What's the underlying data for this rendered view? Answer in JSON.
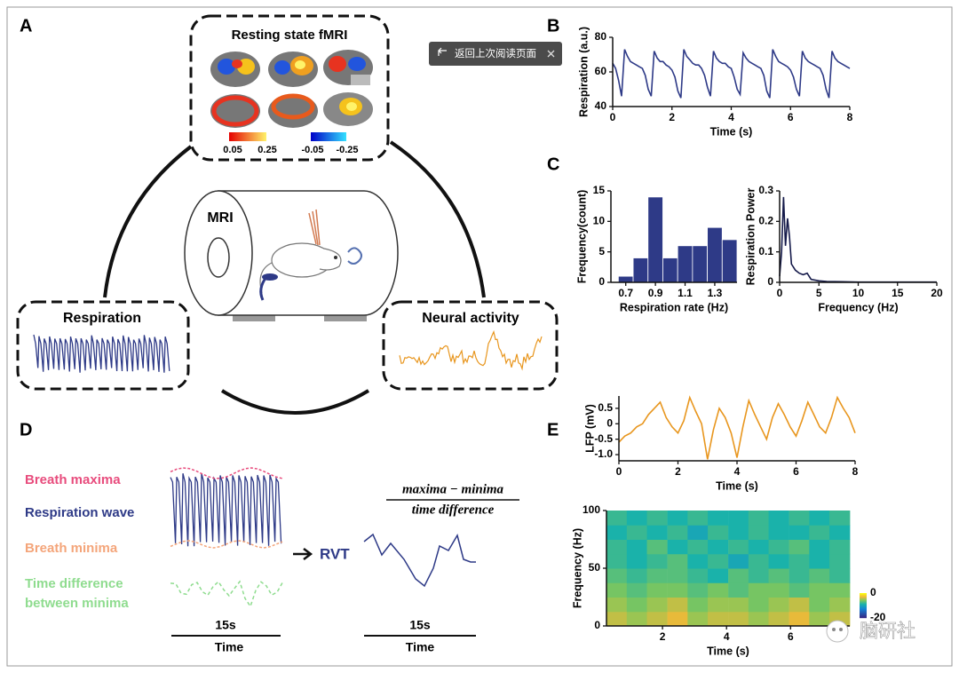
{
  "figure": {
    "panel_labels": [
      "A",
      "B",
      "C",
      "D",
      "E"
    ],
    "panel_a": {
      "fmri_title": "Resting state fMRI",
      "colorbar_labels": [
        "0.05",
        "0.25",
        "-0.05",
        "-0.25"
      ],
      "scanner": "MRI",
      "respiration": "Respiration",
      "neural": "Neural activity"
    },
    "panel_d": {
      "breath_maxima": "Breath maxima",
      "respiration_wave": "Respiration wave",
      "breath_minima": "Breath minima",
      "time_difference": [
        "Time difference",
        "between minima"
      ],
      "duration_left": "15s",
      "time_left": "Time",
      "rvt": "RVT",
      "formula_numerator": "maxima − minima",
      "formula_denominator": "time difference",
      "duration_right": "15s",
      "time_right": "Time"
    }
  },
  "overlay": {
    "back_button": "返回上次阅读页面",
    "watermark": "脑研社"
  },
  "chart_data": [
    {
      "type": "line",
      "xlabel": "Time (s)",
      "ylabel": "Respiration (a.u.)",
      "color": "#2e3a87",
      "x": [
        0,
        0.1,
        0.2,
        0.3,
        0.4,
        0.5,
        0.6,
        0.7,
        0.8,
        0.9,
        1,
        1.1,
        1.2,
        1.3,
        1.4,
        1.5,
        1.6,
        1.7,
        1.8,
        1.9,
        2,
        2.1,
        2.2,
        2.3,
        2.4,
        2.5,
        2.6,
        2.7,
        2.8,
        2.9,
        3,
        3.1,
        3.2,
        3.3,
        3.4,
        3.5,
        3.6,
        3.7,
        3.8,
        3.9,
        4,
        4.1,
        4.2,
        4.3,
        4.4,
        4.5,
        4.6,
        4.7,
        4.8,
        4.9,
        5,
        5.1,
        5.2,
        5.3,
        5.4,
        5.5,
        5.6,
        5.7,
        5.8,
        5.9,
        6,
        6.1,
        6.2,
        6.3,
        6.4,
        6.5,
        6.6,
        6.7,
        6.8,
        6.9,
        7,
        7.1,
        7.2,
        7.3,
        7.4,
        7.5,
        7.6,
        7.7,
        7.8,
        7.9,
        8
      ],
      "values": [
        65,
        62,
        55,
        46,
        73,
        69,
        66,
        65,
        64,
        63,
        62,
        58,
        50,
        46,
        72,
        68,
        66,
        66,
        64,
        63,
        61,
        57,
        49,
        45,
        73,
        69,
        67,
        65,
        64,
        64,
        62,
        58,
        51,
        46,
        72,
        68,
        66,
        65,
        65,
        63,
        62,
        57,
        50,
        47,
        71,
        68,
        66,
        65,
        64,
        63,
        62,
        58,
        49,
        45,
        73,
        69,
        66,
        65,
        64,
        63,
        61,
        57,
        50,
        46,
        72,
        68,
        66,
        65,
        64,
        63,
        62,
        58,
        50,
        45,
        72,
        68,
        66,
        65,
        64,
        63,
        62
      ],
      "xlim": [
        0,
        8
      ],
      "ylim": [
        40,
        80
      ],
      "xticks": [
        0,
        2,
        4,
        6,
        8
      ],
      "yticks": [
        40,
        60,
        80
      ]
    },
    {
      "type": "histogram",
      "xlabel": "Respiration rate (Hz)",
      "ylabel": "Frequency(count)",
      "color": "#2e3a87",
      "bins": [
        0.65,
        0.75,
        0.85,
        0.95,
        1.05,
        1.15,
        1.25,
        1.35,
        1.45
      ],
      "values": [
        1,
        4,
        14,
        4,
        6,
        6,
        9,
        7
      ],
      "xlim": [
        0.6,
        1.45
      ],
      "ylim": [
        0,
        15
      ],
      "xticks": [
        0.7,
        0.9,
        1.1,
        1.3
      ],
      "yticks": [
        0,
        5,
        10,
        15
      ]
    },
    {
      "type": "line",
      "xlabel": "Frequency (Hz)",
      "ylabel": "Respiration Power",
      "color": "#151a4a",
      "x": [
        0,
        0.25,
        0.5,
        0.75,
        1,
        1.25,
        1.5,
        1.75,
        2,
        2.5,
        3,
        3.5,
        4,
        5,
        6,
        8,
        10,
        15,
        20
      ],
      "values": [
        0.02,
        0.1,
        0.28,
        0.12,
        0.21,
        0.15,
        0.06,
        0.05,
        0.04,
        0.03,
        0.025,
        0.03,
        0.01,
        0.005,
        0.003,
        0.002,
        0.001,
        0.001,
        0.001
      ],
      "xlim": [
        0,
        20
      ],
      "ylim": [
        0,
        0.3
      ],
      "xticks": [
        0,
        5,
        10,
        15,
        20
      ],
      "yticks": [
        0,
        0.1,
        0.2,
        0.3
      ]
    },
    {
      "type": "line",
      "xlabel": "Time (s)",
      "ylabel": "LFP (mV)",
      "color": "#e8961e",
      "x": [
        0,
        0.2,
        0.4,
        0.6,
        0.8,
        1,
        1.2,
        1.4,
        1.6,
        1.8,
        2,
        2.2,
        2.4,
        2.6,
        2.8,
        3,
        3.2,
        3.4,
        3.6,
        3.8,
        4,
        4.2,
        4.4,
        4.6,
        4.8,
        5,
        5.2,
        5.4,
        5.6,
        5.8,
        6,
        6.2,
        6.4,
        6.6,
        6.8,
        7,
        7.2,
        7.4,
        7.6,
        7.8,
        8
      ],
      "values": [
        -0.6,
        -0.4,
        -0.3,
        -0.1,
        0,
        0.3,
        0.5,
        0.7,
        0.2,
        -0.1,
        -0.3,
        0.1,
        0.85,
        0.4,
        0,
        -1.15,
        -0.2,
        0.5,
        0.2,
        -0.3,
        -1.1,
        -0.1,
        0.75,
        0.3,
        -0.1,
        -0.5,
        0.2,
        0.65,
        0.3,
        -0.1,
        -0.4,
        0.1,
        0.7,
        0.3,
        -0.1,
        -0.3,
        0.2,
        0.85,
        0.5,
        0.2,
        -0.3
      ],
      "xlim": [
        0,
        8
      ],
      "ylim": [
        -1.2,
        0.9
      ],
      "xticks": [
        0,
        2,
        4,
        6,
        8
      ],
      "yticks": [
        {
          "value": -1,
          "label": "-1.0"
        },
        -0.5,
        0,
        0.5
      ]
    },
    {
      "type": "heatmap",
      "xlabel": "Time (s)",
      "ylabel": "Frequency  (Hz)",
      "colormap": "parula",
      "x": [
        0.57,
        1.2,
        1.83,
        2.47,
        3.1,
        3.73,
        4.37,
        5,
        5.63,
        6.27,
        6.9,
        7.53
      ],
      "y": [
        6.25,
        18.75,
        31.25,
        43.75,
        56.25,
        68.75,
        81.25,
        93.75
      ],
      "values": [
        [
          -4,
          -5,
          -4,
          -3,
          -5,
          -4,
          -4,
          -5,
          -4,
          -3,
          -5,
          -4
        ],
        [
          -5,
          -6,
          -5,
          -4,
          -6,
          -5,
          -5,
          -6,
          -5,
          -4,
          -6,
          -5
        ],
        [
          -6,
          -7,
          -6,
          -6,
          -7,
          -6,
          -7,
          -6,
          -6,
          -7,
          -6,
          -6
        ],
        [
          -7,
          -8,
          -7,
          -7,
          -8,
          -9,
          -7,
          -8,
          -7,
          -8,
          -7,
          -8
        ],
        [
          -8,
          -9,
          -8,
          -7,
          -9,
          -8,
          -10,
          -8,
          -9,
          -8,
          -9,
          -8
        ],
        [
          -8,
          -9,
          -7,
          -9,
          -8,
          -9,
          -8,
          -9,
          -8,
          -7,
          -9,
          -8
        ],
        [
          -9,
          -8,
          -9,
          -8,
          -10,
          -8,
          -9,
          -8,
          -9,
          -9,
          -8,
          -9
        ],
        [
          -8,
          -9,
          -8,
          -9,
          -8,
          -9,
          -9,
          -8,
          -9,
          -8,
          -9,
          -8
        ]
      ],
      "zlim": [
        -20,
        0
      ],
      "colorbar_ticks": [
        0,
        -20
      ],
      "xlim": [
        0.25,
        7.85
      ],
      "ylim": [
        0,
        100
      ],
      "xticks": [
        2,
        4,
        6
      ],
      "yticks": [
        0,
        50,
        100
      ]
    }
  ]
}
